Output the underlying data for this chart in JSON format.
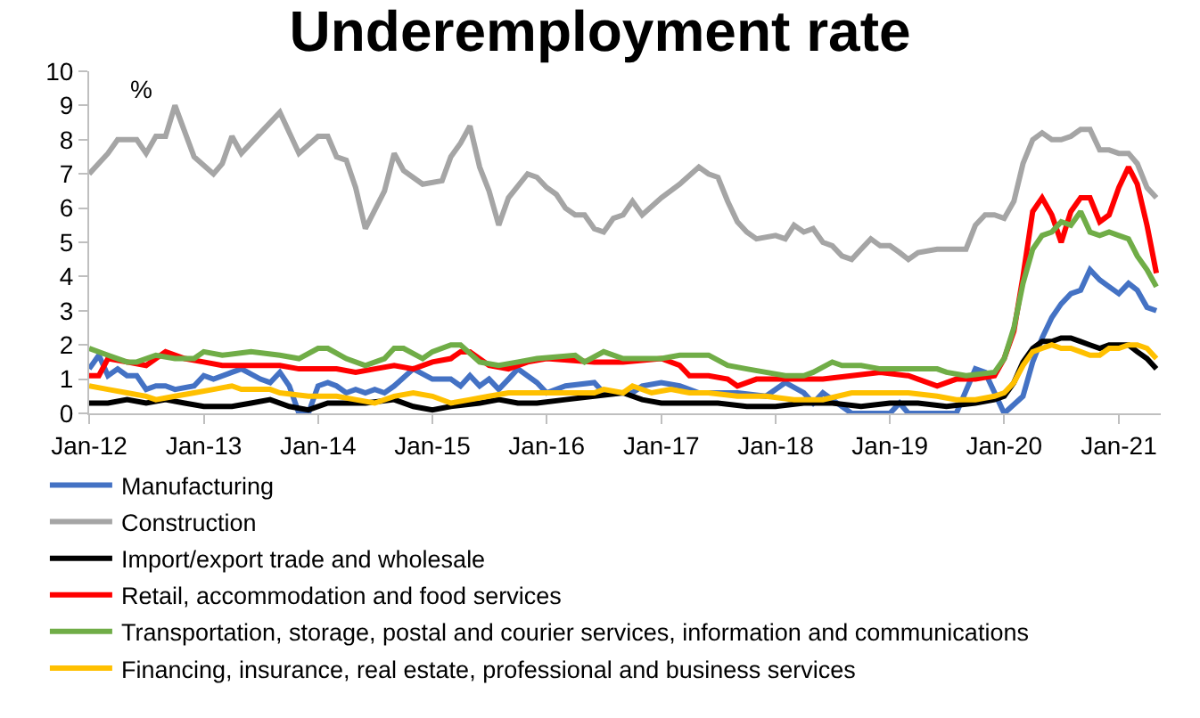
{
  "chart_data": {
    "type": "line",
    "title": "Underemployment rate",
    "ylabel": "%",
    "xlim": [
      "2012-01-01",
      "2021-05-15"
    ],
    "ylim": [
      0,
      10
    ],
    "yticks": [
      0,
      1,
      2,
      3,
      4,
      5,
      6,
      7,
      8,
      9,
      10
    ],
    "xticks": [
      {
        "value": "2012-01-01",
        "label": "Jan-12"
      },
      {
        "value": "2013-01-01",
        "label": "Jan-13"
      },
      {
        "value": "2014-01-01",
        "label": "Jan-14"
      },
      {
        "value": "2015-01-01",
        "label": "Jan-15"
      },
      {
        "value": "2016-01-01",
        "label": "Jan-16"
      },
      {
        "value": "2017-01-01",
        "label": "Jan-17"
      },
      {
        "value": "2018-01-01",
        "label": "Jan-18"
      },
      {
        "value": "2019-01-01",
        "label": "Jan-19"
      },
      {
        "value": "2020-01-01",
        "label": "Jan-20"
      },
      {
        "value": "2021-01-01",
        "label": "Jan-21"
      }
    ],
    "legend": "bottom",
    "marker": "none",
    "line_style": "solid",
    "series": [
      {
        "name": "Manufacturing",
        "color": "#4472c4",
        "x": [
          "2012-01",
          "2012-02",
          "2012-03",
          "2012-04",
          "2012-05",
          "2012-06",
          "2012-07",
          "2012-08",
          "2012-09",
          "2012-10",
          "2012-12",
          "2013-01",
          "2013-02",
          "2013-04",
          "2013-05",
          "2013-07",
          "2013-08",
          "2013-09",
          "2013-10",
          "2013-11",
          "2013-12",
          "2014-01",
          "2014-02",
          "2014-03",
          "2014-04",
          "2014-05",
          "2014-06",
          "2014-07",
          "2014-08",
          "2014-09",
          "2014-11",
          "2015-01",
          "2015-03",
          "2015-04",
          "2015-05",
          "2015-06",
          "2015-07",
          "2015-08",
          "2015-09",
          "2015-10",
          "2015-12",
          "2016-01",
          "2016-03",
          "2016-06",
          "2016-07",
          "2016-10",
          "2016-11",
          "2017-01",
          "2017-03",
          "2017-05",
          "2017-09",
          "2017-12",
          "2018-02",
          "2018-04",
          "2018-05",
          "2018-06",
          "2018-08",
          "2018-09",
          "2019-01",
          "2019-02",
          "2019-03",
          "2019-08",
          "2019-10",
          "2019-11",
          "2020-01",
          "2020-03",
          "2020-04",
          "2020-05",
          "2020-06",
          "2020-07",
          "2020-08",
          "2020-09",
          "2020-10",
          "2020-11",
          "2020-12",
          "2021-01",
          "2021-02",
          "2021-03",
          "2021-04",
          "2021-05"
        ],
        "values": [
          1.3,
          1.7,
          1.1,
          1.3,
          1.1,
          1.1,
          0.7,
          0.8,
          0.8,
          0.7,
          0.8,
          1.1,
          1.0,
          1.2,
          1.3,
          1.0,
          0.9,
          1.2,
          0.8,
          0.0,
          0.0,
          0.8,
          0.9,
          0.8,
          0.6,
          0.7,
          0.6,
          0.7,
          0.6,
          0.8,
          1.3,
          1.0,
          1.0,
          0.8,
          1.1,
          0.8,
          1.0,
          0.7,
          1.0,
          1.3,
          0.9,
          0.6,
          0.8,
          0.9,
          0.6,
          0.6,
          0.8,
          0.9,
          0.8,
          0.6,
          0.6,
          0.5,
          0.9,
          0.6,
          0.3,
          0.6,
          0.2,
          0.0,
          0.0,
          0.3,
          0.0,
          0.0,
          1.3,
          1.2,
          0.0,
          0.5,
          1.5,
          2.2,
          2.8,
          3.2,
          3.5,
          3.6,
          4.2,
          3.9,
          3.7,
          3.5,
          3.8,
          3.6,
          3.1,
          3.0
        ]
      },
      {
        "name": "Construction",
        "color": "#a5a5a5",
        "x": [
          "2012-01",
          "2012-03",
          "2012-04",
          "2012-06",
          "2012-07",
          "2012-08",
          "2012-09",
          "2012-10",
          "2012-12",
          "2013-02",
          "2013-03",
          "2013-04",
          "2013-05",
          "2013-07",
          "2013-09",
          "2013-11",
          "2014-01",
          "2014-02",
          "2014-03",
          "2014-04",
          "2014-05",
          "2014-06",
          "2014-08",
          "2014-09",
          "2014-10",
          "2014-12",
          "2015-02",
          "2015-03",
          "2015-04",
          "2015-05",
          "2015-06",
          "2015-07",
          "2015-08",
          "2015-09",
          "2015-11",
          "2015-12",
          "2016-01",
          "2016-02",
          "2016-03",
          "2016-04",
          "2016-05",
          "2016-06",
          "2016-07",
          "2016-08",
          "2016-09",
          "2016-10",
          "2016-11",
          "2017-01",
          "2017-03",
          "2017-05",
          "2017-06",
          "2017-07",
          "2017-08",
          "2017-09",
          "2017-10",
          "2017-11",
          "2018-01",
          "2018-02",
          "2018-03",
          "2018-04",
          "2018-05",
          "2018-06",
          "2018-07",
          "2018-08",
          "2018-09",
          "2018-10",
          "2018-11",
          "2018-12",
          "2019-01",
          "2019-02",
          "2019-03",
          "2019-04",
          "2019-06",
          "2019-09",
          "2019-10",
          "2019-11",
          "2019-12",
          "2020-01",
          "2020-02",
          "2020-03",
          "2020-04",
          "2020-05",
          "2020-06",
          "2020-07",
          "2020-08",
          "2020-09",
          "2020-10",
          "2020-11",
          "2020-12",
          "2021-01",
          "2021-02",
          "2021-03",
          "2021-04",
          "2021-05"
        ],
        "values": [
          7.0,
          7.6,
          8.0,
          8.0,
          7.6,
          8.1,
          8.1,
          9.0,
          7.5,
          7.0,
          7.3,
          8.1,
          7.6,
          8.2,
          8.8,
          7.6,
          8.1,
          8.1,
          7.5,
          7.4,
          6.6,
          5.4,
          6.5,
          7.6,
          7.1,
          6.7,
          6.8,
          7.5,
          7.9,
          8.4,
          7.2,
          6.5,
          5.5,
          6.3,
          7.0,
          6.9,
          6.6,
          6.4,
          6.0,
          5.8,
          5.8,
          5.4,
          5.3,
          5.7,
          5.8,
          6.2,
          5.8,
          6.3,
          6.7,
          7.2,
          7.0,
          6.9,
          6.2,
          5.6,
          5.3,
          5.1,
          5.2,
          5.1,
          5.5,
          5.3,
          5.4,
          5.0,
          4.9,
          4.6,
          4.5,
          4.8,
          5.1,
          4.9,
          4.9,
          4.7,
          4.5,
          4.7,
          4.8,
          4.8,
          5.5,
          5.8,
          5.8,
          5.7,
          6.2,
          7.3,
          8.0,
          8.2,
          8.0,
          8.0,
          8.1,
          8.3,
          8.3,
          7.7,
          7.7,
          7.6,
          7.6,
          7.3,
          6.6,
          6.3
        ]
      },
      {
        "name": "Import/export trade and wholesale",
        "color": "#000000",
        "x": [
          "2012-01",
          "2012-03",
          "2012-05",
          "2012-07",
          "2012-09",
          "2012-11",
          "2013-01",
          "2013-04",
          "2013-06",
          "2013-08",
          "2013-10",
          "2013-12",
          "2014-02",
          "2014-06",
          "2014-09",
          "2014-11",
          "2015-01",
          "2015-03",
          "2015-06",
          "2015-08",
          "2015-10",
          "2015-12",
          "2016-03",
          "2016-06",
          "2016-09",
          "2016-11",
          "2017-01",
          "2017-04",
          "2017-07",
          "2017-10",
          "2018-01",
          "2018-04",
          "2018-07",
          "2018-10",
          "2019-01",
          "2019-04",
          "2019-07",
          "2019-10",
          "2019-12",
          "2020-01",
          "2020-02",
          "2020-03",
          "2020-04",
          "2020-05",
          "2020-06",
          "2020-07",
          "2020-08",
          "2020-09",
          "2020-10",
          "2020-11",
          "2020-12",
          "2021-01",
          "2021-02",
          "2021-03",
          "2021-04",
          "2021-05"
        ],
        "values": [
          0.3,
          0.3,
          0.4,
          0.3,
          0.4,
          0.3,
          0.2,
          0.2,
          0.3,
          0.4,
          0.2,
          0.1,
          0.3,
          0.3,
          0.4,
          0.2,
          0.1,
          0.2,
          0.3,
          0.4,
          0.3,
          0.3,
          0.4,
          0.5,
          0.6,
          0.4,
          0.3,
          0.3,
          0.3,
          0.2,
          0.2,
          0.3,
          0.3,
          0.2,
          0.3,
          0.3,
          0.2,
          0.3,
          0.4,
          0.5,
          0.9,
          1.5,
          1.9,
          2.1,
          2.1,
          2.2,
          2.2,
          2.1,
          2.0,
          1.9,
          2.0,
          2.0,
          2.0,
          1.8,
          1.6,
          1.3
        ]
      },
      {
        "name": "Retail, accommodation and food services",
        "color": "#ff0000",
        "x": [
          "2012-01",
          "2012-02",
          "2012-03",
          "2012-05",
          "2012-07",
          "2012-09",
          "2012-11",
          "2013-01",
          "2013-03",
          "2013-09",
          "2013-11",
          "2014-01",
          "2014-03",
          "2014-05",
          "2014-07",
          "2014-09",
          "2014-11",
          "2015-01",
          "2015-03",
          "2015-04",
          "2015-05",
          "2015-07",
          "2015-09",
          "2015-11",
          "2016-01",
          "2016-06",
          "2016-09",
          "2017-01",
          "2017-03",
          "2017-04",
          "2017-06",
          "2017-08",
          "2017-09",
          "2017-11",
          "2018-01",
          "2018-03",
          "2018-06",
          "2018-09",
          "2018-12",
          "2019-03",
          "2019-04",
          "2019-06",
          "2019-08",
          "2019-10",
          "2019-12",
          "2020-01",
          "2020-02",
          "2020-03",
          "2020-04",
          "2020-05",
          "2020-06",
          "2020-07",
          "2020-08",
          "2020-09",
          "2020-10",
          "2020-11",
          "2020-12",
          "2021-01",
          "2021-02",
          "2021-03",
          "2021-04",
          "2021-05"
        ],
        "values": [
          1.1,
          1.1,
          1.6,
          1.5,
          1.4,
          1.8,
          1.6,
          1.5,
          1.4,
          1.4,
          1.3,
          1.3,
          1.3,
          1.2,
          1.3,
          1.4,
          1.3,
          1.5,
          1.6,
          1.8,
          1.8,
          1.4,
          1.3,
          1.5,
          1.6,
          1.5,
          1.5,
          1.6,
          1.4,
          1.1,
          1.1,
          1.0,
          0.8,
          1.0,
          1.0,
          1.0,
          1.0,
          1.1,
          1.2,
          1.1,
          1.0,
          0.8,
          1.0,
          1.0,
          1.1,
          1.6,
          2.4,
          4.0,
          5.9,
          6.3,
          5.8,
          5.0,
          5.9,
          6.3,
          6.3,
          5.6,
          5.8,
          6.6,
          7.2,
          6.7,
          5.5,
          4.1
        ]
      },
      {
        "name": "Transportation, storage, postal and courier services, information and communications",
        "color": "#70ad47",
        "x": [
          "2012-01",
          "2012-03",
          "2012-05",
          "2012-06",
          "2012-08",
          "2012-10",
          "2012-12",
          "2013-01",
          "2013-03",
          "2013-06",
          "2013-09",
          "2013-11",
          "2014-01",
          "2014-02",
          "2014-04",
          "2014-06",
          "2014-08",
          "2014-09",
          "2014-10",
          "2014-12",
          "2015-01",
          "2015-03",
          "2015-04",
          "2015-06",
          "2015-08",
          "2015-10",
          "2015-12",
          "2016-04",
          "2016-05",
          "2016-07",
          "2016-09",
          "2017-01",
          "2017-03",
          "2017-06",
          "2017-08",
          "2017-10",
          "2017-12",
          "2018-02",
          "2018-04",
          "2018-05",
          "2018-07",
          "2018-08",
          "2018-10",
          "2018-12",
          "2019-06",
          "2019-07",
          "2019-09",
          "2019-12",
          "2020-01",
          "2020-02",
          "2020-03",
          "2020-04",
          "2020-05",
          "2020-06",
          "2020-07",
          "2020-08",
          "2020-09",
          "2020-10",
          "2020-11",
          "2020-12",
          "2021-01",
          "2021-02",
          "2021-03",
          "2021-04",
          "2021-05"
        ],
        "values": [
          1.9,
          1.7,
          1.5,
          1.5,
          1.7,
          1.6,
          1.6,
          1.8,
          1.7,
          1.8,
          1.7,
          1.6,
          1.9,
          1.9,
          1.6,
          1.4,
          1.6,
          1.9,
          1.9,
          1.6,
          1.8,
          2.0,
          2.0,
          1.5,
          1.4,
          1.5,
          1.6,
          1.7,
          1.5,
          1.8,
          1.6,
          1.6,
          1.7,
          1.7,
          1.4,
          1.3,
          1.2,
          1.1,
          1.1,
          1.2,
          1.5,
          1.4,
          1.4,
          1.3,
          1.3,
          1.2,
          1.1,
          1.2,
          1.6,
          2.5,
          3.8,
          4.8,
          5.2,
          5.3,
          5.6,
          5.5,
          5.9,
          5.3,
          5.2,
          5.3,
          5.2,
          5.1,
          4.6,
          4.2,
          3.7
        ]
      },
      {
        "name": "Financing, insurance, real estate, professional and business services",
        "color": "#ffc000",
        "x": [
          "2012-01",
          "2012-03",
          "2012-05",
          "2012-07",
          "2012-08",
          "2012-10",
          "2012-12",
          "2013-02",
          "2013-04",
          "2013-05",
          "2013-08",
          "2013-09",
          "2013-12",
          "2014-03",
          "2014-05",
          "2014-07",
          "2014-09",
          "2014-11",
          "2015-01",
          "2015-03",
          "2015-05",
          "2015-07",
          "2015-09",
          "2015-12",
          "2016-03",
          "2016-06",
          "2016-07",
          "2016-09",
          "2016-10",
          "2016-12",
          "2017-02",
          "2017-04",
          "2017-06",
          "2017-09",
          "2017-12",
          "2018-03",
          "2018-06",
          "2018-09",
          "2018-12",
          "2019-03",
          "2019-06",
          "2019-08",
          "2019-10",
          "2019-12",
          "2020-01",
          "2020-02",
          "2020-03",
          "2020-04",
          "2020-05",
          "2020-06",
          "2020-07",
          "2020-08",
          "2020-09",
          "2020-10",
          "2020-11",
          "2020-12",
          "2021-01",
          "2021-02",
          "2021-03",
          "2021-04",
          "2021-05"
        ],
        "values": [
          0.8,
          0.7,
          0.6,
          0.5,
          0.4,
          0.5,
          0.6,
          0.7,
          0.8,
          0.7,
          0.7,
          0.6,
          0.5,
          0.5,
          0.4,
          0.3,
          0.5,
          0.6,
          0.5,
          0.3,
          0.4,
          0.5,
          0.6,
          0.6,
          0.6,
          0.6,
          0.7,
          0.6,
          0.8,
          0.6,
          0.7,
          0.6,
          0.6,
          0.5,
          0.5,
          0.4,
          0.4,
          0.6,
          0.6,
          0.6,
          0.5,
          0.4,
          0.4,
          0.5,
          0.6,
          0.9,
          1.4,
          1.8,
          1.9,
          2.0,
          1.9,
          1.9,
          1.8,
          1.7,
          1.7,
          1.9,
          1.9,
          2.0,
          2.0,
          1.9,
          1.6
        ]
      }
    ]
  }
}
